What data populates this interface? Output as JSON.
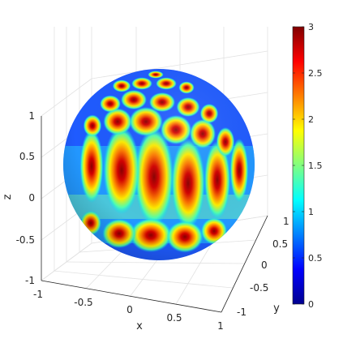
{
  "chart_data": {
    "type": "surface",
    "surface": {
      "shape": "unit sphere",
      "colormap": "jet",
      "value_range": [
        0,
        3
      ],
      "pattern": "spherical-harmonic-like lobes: tall vertical lobes around the equator, round spots toward the top"
    },
    "axes": {
      "x": {
        "label": "x",
        "lim": [
          -1,
          1
        ],
        "ticks": [
          -1,
          -0.5,
          0,
          0.5,
          1
        ],
        "tick_labels": [
          "-1",
          "-0.5",
          "0",
          "0.5",
          "1"
        ]
      },
      "y": {
        "label": "y",
        "lim": [
          -1,
          1
        ],
        "ticks": [
          -1,
          -0.5,
          0,
          0.5,
          1
        ],
        "tick_labels": [
          "-1",
          "-0.5",
          "0",
          "0.5",
          "1"
        ]
      },
      "z": {
        "label": "z",
        "lim": [
          -1,
          1
        ],
        "ticks": [
          -1,
          -0.5,
          0,
          0.5,
          1
        ],
        "tick_labels": [
          "-1",
          "-0.5",
          "0",
          "0.5",
          "1"
        ]
      }
    },
    "grid": true,
    "colorbar": {
      "placement": "right",
      "lim": [
        0,
        3
      ],
      "ticks": [
        0,
        0.5,
        1,
        1.5,
        2,
        2.5,
        3
      ],
      "tick_labels": [
        "0",
        "0.5",
        "1",
        "1.5",
        "2",
        "2.5",
        "3"
      ]
    }
  }
}
